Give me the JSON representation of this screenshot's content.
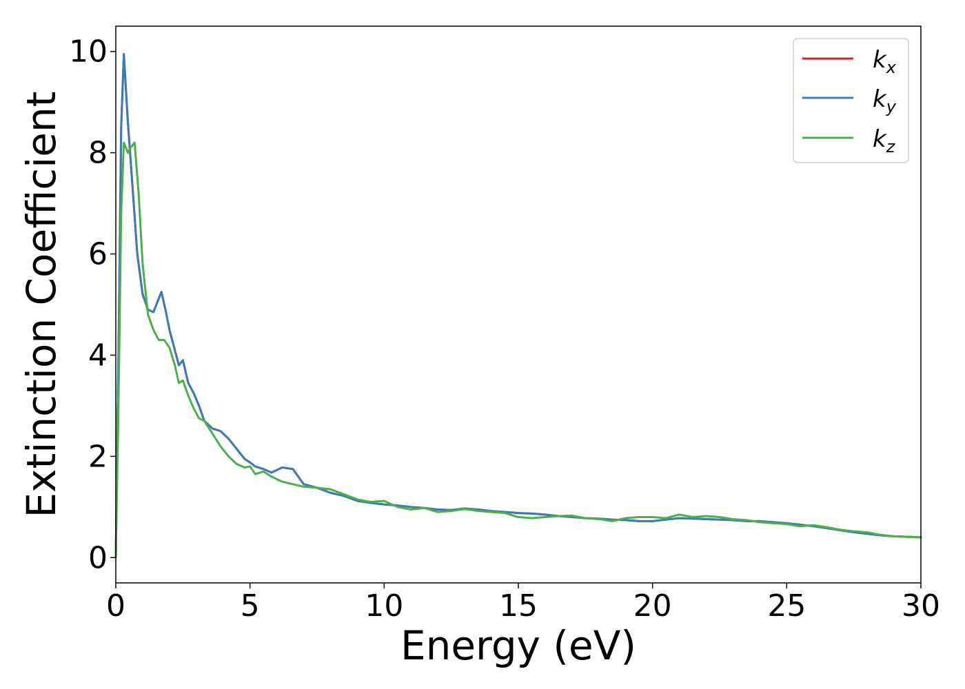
{
  "chart_data": {
    "type": "line",
    "xlabel": "Energy (eV)",
    "ylabel": "Extinction Coefficient",
    "xlim": [
      0,
      30
    ],
    "ylim": [
      -0.5,
      10.5
    ],
    "x_ticks": [
      0,
      5,
      10,
      15,
      20,
      25,
      30
    ],
    "y_ticks": [
      0,
      2,
      4,
      6,
      8,
      10
    ],
    "grid": false,
    "legend": {
      "placement": "top-right",
      "entries": [
        {
          "base": "k",
          "sub": "x",
          "color": "#e41a1c"
        },
        {
          "base": "k",
          "sub": "y",
          "color": "#377eb8"
        },
        {
          "base": "k",
          "sub": "z",
          "color": "#4daf4a"
        }
      ]
    },
    "series": [
      {
        "name": "kx",
        "color": "#e41a1c",
        "x": [
          0,
          0.1,
          0.2,
          0.3,
          0.45,
          0.6,
          0.8,
          1.0,
          1.2,
          1.4,
          1.55,
          1.7,
          1.85,
          2.0,
          2.2,
          2.35,
          2.5,
          2.7,
          2.9,
          3.1,
          3.3,
          3.6,
          3.9,
          4.2,
          4.5,
          4.8,
          5.0,
          5.2,
          5.5,
          5.8,
          6.2,
          6.6,
          7.0,
          7.5,
          8.0,
          8.5,
          9.0,
          9.5,
          10.0,
          10.5,
          11.0,
          11.5,
          12.0,
          12.5,
          13.0,
          13.5,
          14.0,
          14.5,
          15.0,
          15.5,
          16.0,
          16.5,
          17.0,
          17.5,
          18.0,
          18.5,
          19.0,
          19.5,
          20.0,
          20.5,
          21.0,
          21.5,
          22.0,
          22.5,
          23.0,
          23.5,
          24.0,
          24.5,
          25.0,
          25.5,
          26.0,
          26.5,
          27.0,
          27.5,
          28.0,
          28.5,
          29.0,
          29.5,
          30.0
        ],
        "y": [
          0.0,
          4.0,
          8.5,
          9.95,
          8.6,
          7.5,
          6.0,
          5.2,
          4.9,
          4.85,
          5.05,
          5.25,
          4.9,
          4.5,
          4.1,
          3.8,
          3.9,
          3.45,
          3.25,
          3.0,
          2.7,
          2.55,
          2.5,
          2.35,
          2.15,
          1.95,
          1.88,
          1.8,
          1.75,
          1.68,
          1.78,
          1.75,
          1.45,
          1.38,
          1.28,
          1.22,
          1.12,
          1.08,
          1.05,
          1.03,
          1.0,
          0.98,
          0.95,
          0.94,
          0.97,
          0.95,
          0.92,
          0.9,
          0.88,
          0.87,
          0.85,
          0.82,
          0.8,
          0.78,
          0.77,
          0.75,
          0.74,
          0.72,
          0.72,
          0.75,
          0.78,
          0.77,
          0.76,
          0.75,
          0.74,
          0.72,
          0.72,
          0.7,
          0.68,
          0.65,
          0.62,
          0.58,
          0.54,
          0.5,
          0.47,
          0.44,
          0.42,
          0.41,
          0.4
        ]
      },
      {
        "name": "ky",
        "color": "#377eb8",
        "x": [
          0,
          0.1,
          0.2,
          0.3,
          0.45,
          0.6,
          0.8,
          1.0,
          1.2,
          1.4,
          1.55,
          1.7,
          1.85,
          2.0,
          2.2,
          2.35,
          2.5,
          2.7,
          2.9,
          3.1,
          3.3,
          3.6,
          3.9,
          4.2,
          4.5,
          4.8,
          5.0,
          5.2,
          5.5,
          5.8,
          6.2,
          6.6,
          7.0,
          7.5,
          8.0,
          8.5,
          9.0,
          9.5,
          10.0,
          10.5,
          11.0,
          11.5,
          12.0,
          12.5,
          13.0,
          13.5,
          14.0,
          14.5,
          15.0,
          15.5,
          16.0,
          16.5,
          17.0,
          17.5,
          18.0,
          18.5,
          19.0,
          19.5,
          20.0,
          20.5,
          21.0,
          21.5,
          22.0,
          22.5,
          23.0,
          23.5,
          24.0,
          24.5,
          25.0,
          25.5,
          26.0,
          26.5,
          27.0,
          27.5,
          28.0,
          28.5,
          29.0,
          29.5,
          30.0
        ],
        "y": [
          0.0,
          4.0,
          8.5,
          9.95,
          8.6,
          7.5,
          6.0,
          5.2,
          4.9,
          4.85,
          5.05,
          5.25,
          4.9,
          4.5,
          4.1,
          3.8,
          3.9,
          3.45,
          3.25,
          3.0,
          2.7,
          2.55,
          2.5,
          2.35,
          2.15,
          1.95,
          1.88,
          1.8,
          1.75,
          1.68,
          1.78,
          1.75,
          1.45,
          1.38,
          1.28,
          1.22,
          1.12,
          1.08,
          1.05,
          1.03,
          1.0,
          0.98,
          0.95,
          0.94,
          0.97,
          0.95,
          0.92,
          0.9,
          0.88,
          0.87,
          0.85,
          0.82,
          0.8,
          0.78,
          0.77,
          0.75,
          0.74,
          0.72,
          0.72,
          0.75,
          0.78,
          0.77,
          0.76,
          0.75,
          0.74,
          0.72,
          0.72,
          0.7,
          0.68,
          0.65,
          0.62,
          0.58,
          0.54,
          0.5,
          0.47,
          0.44,
          0.42,
          0.41,
          0.4
        ]
      },
      {
        "name": "kz",
        "color": "#4daf4a",
        "x": [
          0,
          0.1,
          0.2,
          0.3,
          0.45,
          0.55,
          0.7,
          0.85,
          1.0,
          1.2,
          1.4,
          1.6,
          1.8,
          2.0,
          2.2,
          2.35,
          2.5,
          2.7,
          2.9,
          3.1,
          3.3,
          3.6,
          3.9,
          4.2,
          4.5,
          4.8,
          5.0,
          5.2,
          5.5,
          5.8,
          6.2,
          6.6,
          7.0,
          7.5,
          8.0,
          8.5,
          9.0,
          9.5,
          10.0,
          10.5,
          11.0,
          11.5,
          12.0,
          12.5,
          13.0,
          13.5,
          14.0,
          14.5,
          15.0,
          15.5,
          16.0,
          16.5,
          17.0,
          17.5,
          18.0,
          18.5,
          19.0,
          19.5,
          20.0,
          20.5,
          21.0,
          21.5,
          22.0,
          22.5,
          23.0,
          23.5,
          24.0,
          24.5,
          25.0,
          25.5,
          26.0,
          26.5,
          27.0,
          27.5,
          28.0,
          28.5,
          29.0,
          29.5,
          30.0
        ],
        "y": [
          0.0,
          3.0,
          6.8,
          8.2,
          8.0,
          8.1,
          8.2,
          7.2,
          5.8,
          4.8,
          4.5,
          4.3,
          4.3,
          4.15,
          3.8,
          3.45,
          3.5,
          3.2,
          2.95,
          2.75,
          2.7,
          2.45,
          2.2,
          2.0,
          1.85,
          1.78,
          1.8,
          1.65,
          1.7,
          1.6,
          1.5,
          1.45,
          1.4,
          1.38,
          1.35,
          1.25,
          1.15,
          1.1,
          1.12,
          1.0,
          0.95,
          0.98,
          0.9,
          0.92,
          0.96,
          0.92,
          0.9,
          0.88,
          0.8,
          0.78,
          0.8,
          0.82,
          0.83,
          0.78,
          0.76,
          0.72,
          0.78,
          0.8,
          0.8,
          0.78,
          0.85,
          0.8,
          0.82,
          0.8,
          0.76,
          0.74,
          0.7,
          0.68,
          0.66,
          0.62,
          0.64,
          0.6,
          0.55,
          0.52,
          0.5,
          0.45,
          0.42,
          0.41,
          0.4
        ]
      }
    ]
  }
}
